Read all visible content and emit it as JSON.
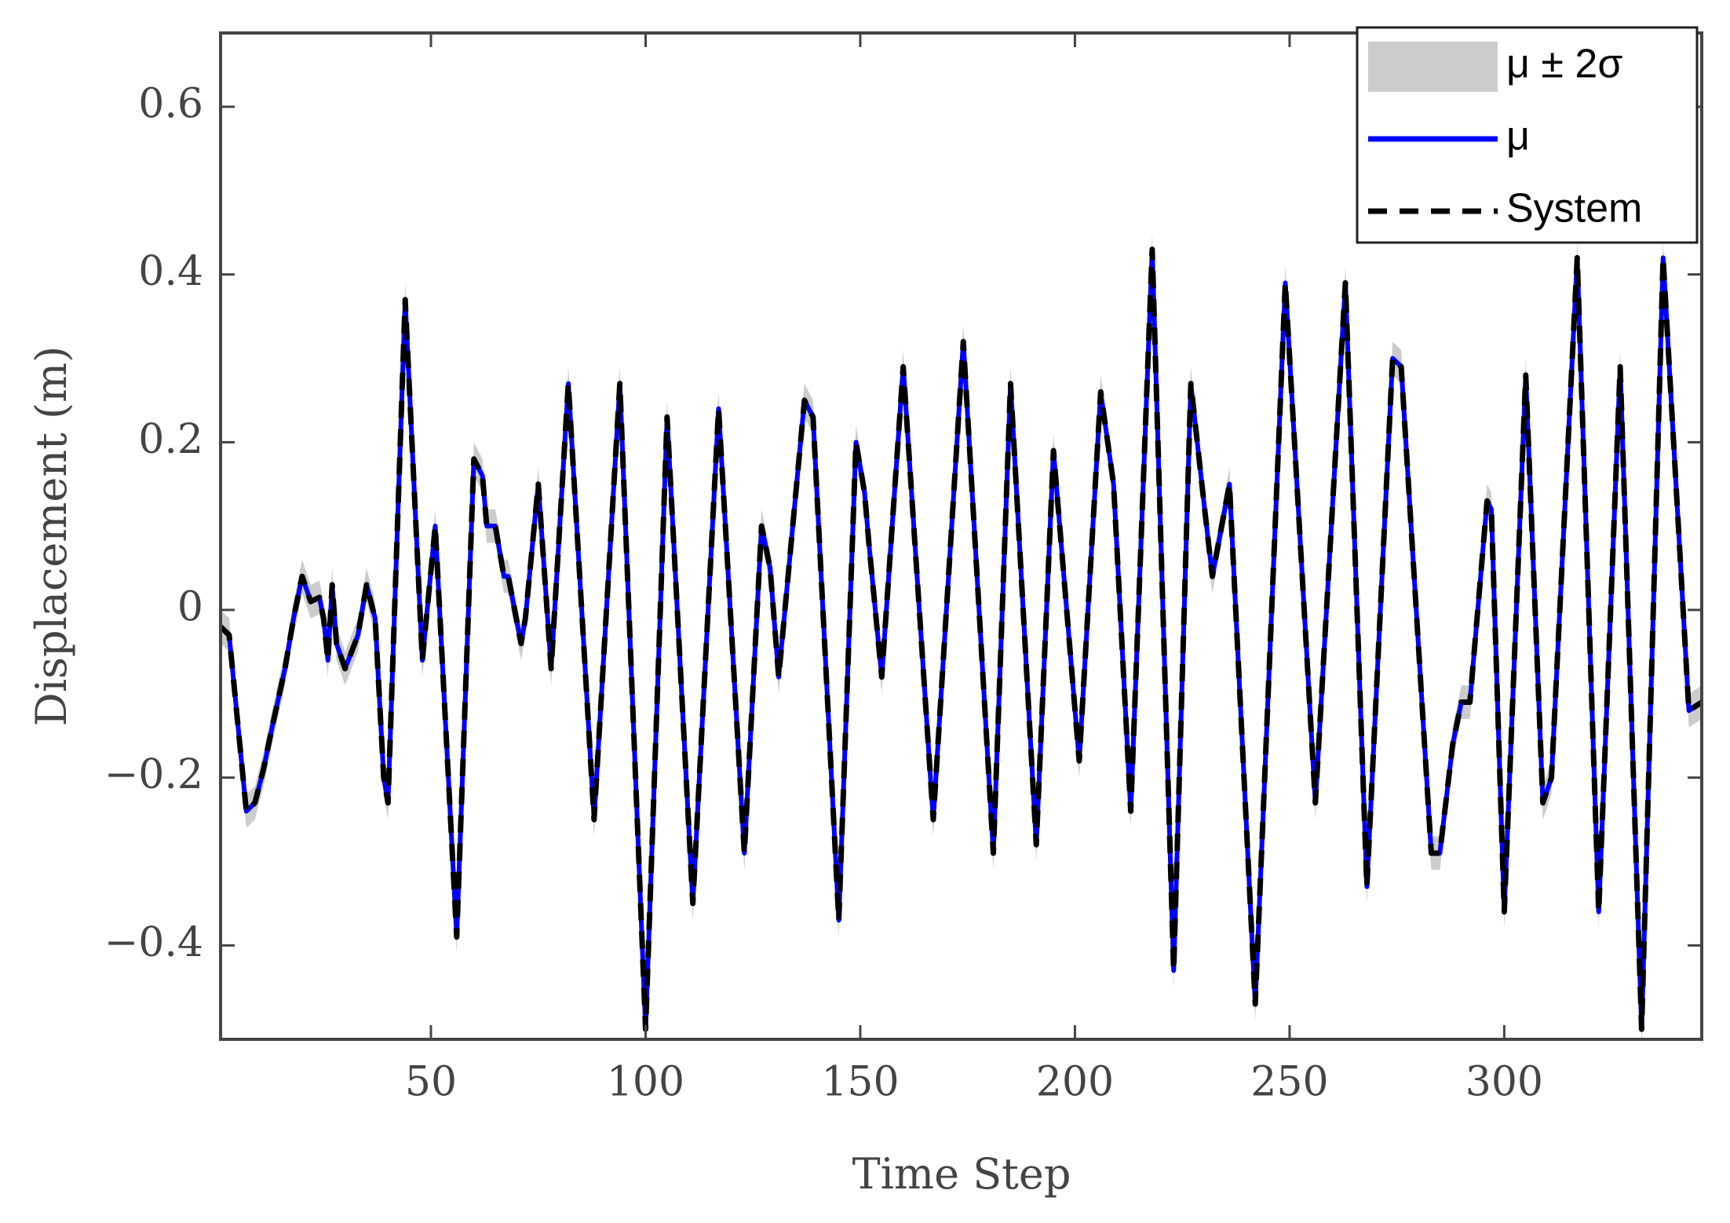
{
  "chart_data": {
    "type": "line",
    "xlabel": "Time Step",
    "ylabel": "Displacement (m)",
    "xlim": [
      1,
      346
    ],
    "ylim": [
      -0.512,
      0.688
    ],
    "xticks": [
      50,
      100,
      150,
      200,
      250,
      300
    ],
    "yticks": [
      {
        "value": -0.4,
        "label": "−0.4"
      },
      {
        "value": -0.2,
        "label": "−0.2"
      },
      0,
      0.2,
      0.4,
      0.6
    ],
    "legend": "upper right",
    "x": [
      1,
      3,
      7,
      9,
      11,
      13,
      16,
      18,
      20,
      22,
      24,
      25,
      26,
      27,
      28,
      30,
      33,
      35,
      37,
      39,
      40,
      44,
      48,
      51,
      56,
      60,
      62,
      63,
      65,
      67,
      68,
      71,
      72,
      75,
      78,
      82,
      88,
      94,
      100,
      105,
      111,
      117,
      123,
      127,
      129,
      131,
      137,
      139,
      145,
      149,
      151,
      152,
      155,
      160,
      167,
      174,
      181,
      185,
      191,
      195,
      201,
      206,
      209,
      213,
      218,
      223,
      227,
      230,
      232,
      236,
      242,
      249,
      256,
      263,
      268,
      274,
      276,
      283,
      285,
      288,
      290,
      292,
      296,
      297,
      300,
      305,
      309,
      311,
      317,
      322,
      327,
      332,
      337,
      343,
      346
    ],
    "series": [
      {
        "name": "μ ± 2σ",
        "color": "#cccccc",
        "lower": [
          -0.04,
          -0.05,
          -0.26,
          -0.25,
          -0.21,
          -0.16,
          -0.09,
          -0.03,
          0.02,
          -0.01,
          -0.005,
          -0.03,
          -0.08,
          0.01,
          -0.06,
          -0.09,
          -0.05,
          0.01,
          -0.03,
          -0.22,
          -0.25,
          0.35,
          -0.08,
          0.08,
          -0.41,
          0.16,
          0.14,
          0.08,
          0.08,
          0.02,
          0.02,
          -0.06,
          -0.03,
          0.13,
          -0.09,
          0.25,
          -0.27,
          0.25,
          -0.52,
          0.21,
          -0.37,
          0.22,
          -0.31,
          0.08,
          0.03,
          -0.1,
          0.23,
          0.21,
          -0.39,
          0.18,
          0.12,
          0.06,
          -0.1,
          0.27,
          -0.27,
          0.3,
          -0.31,
          0.25,
          -0.3,
          0.17,
          -0.2,
          0.24,
          0.13,
          -0.26,
          0.41,
          -0.45,
          0.25,
          0.11,
          0.02,
          0.13,
          -0.49,
          0.37,
          -0.25,
          0.37,
          -0.35,
          0.28,
          0.27,
          -0.31,
          -0.31,
          -0.18,
          -0.13,
          -0.13,
          0.11,
          0.1,
          -0.38,
          0.26,
          -0.25,
          -0.22,
          0.4,
          -0.38,
          0.27,
          -0.52,
          0.4,
          -0.14,
          -0.13
        ],
        "upper": [
          0.0,
          -0.01,
          -0.22,
          -0.21,
          -0.17,
          -0.12,
          -0.05,
          0.01,
          0.06,
          0.03,
          0.035,
          0.01,
          -0.04,
          0.05,
          -0.02,
          -0.05,
          -0.01,
          0.05,
          0.01,
          -0.18,
          -0.21,
          0.39,
          -0.04,
          0.12,
          -0.37,
          0.2,
          0.18,
          0.12,
          0.12,
          0.06,
          0.06,
          -0.02,
          0.01,
          0.17,
          -0.05,
          0.29,
          -0.23,
          0.29,
          -0.48,
          0.25,
          -0.33,
          0.26,
          -0.27,
          0.12,
          0.07,
          -0.06,
          0.27,
          0.25,
          -0.35,
          0.22,
          0.16,
          0.1,
          -0.06,
          0.31,
          -0.23,
          0.34,
          -0.27,
          0.29,
          -0.26,
          0.21,
          -0.16,
          0.28,
          0.17,
          -0.22,
          0.45,
          -0.41,
          0.29,
          0.15,
          0.06,
          0.17,
          -0.45,
          0.41,
          -0.21,
          0.41,
          -0.31,
          0.32,
          0.31,
          -0.27,
          -0.27,
          -0.14,
          -0.09,
          -0.09,
          0.15,
          0.14,
          -0.34,
          0.3,
          -0.21,
          -0.18,
          0.44,
          -0.34,
          0.31,
          -0.48,
          0.44,
          -0.1,
          -0.09
        ]
      },
      {
        "name": "μ",
        "color": "#0000ff",
        "dash": false,
        "values": [
          -0.02,
          -0.03,
          -0.24,
          -0.23,
          -0.19,
          -0.14,
          -0.07,
          -0.01,
          0.04,
          0.01,
          0.015,
          -0.01,
          -0.06,
          0.03,
          -0.04,
          -0.07,
          -0.03,
          0.03,
          -0.01,
          -0.2,
          -0.23,
          0.37,
          -0.06,
          0.1,
          -0.39,
          0.18,
          0.16,
          0.1,
          0.1,
          0.04,
          0.04,
          -0.04,
          -0.01,
          0.15,
          -0.07,
          0.27,
          -0.25,
          0.27,
          -0.5,
          0.23,
          -0.35,
          0.24,
          -0.29,
          0.1,
          0.05,
          -0.08,
          0.25,
          0.23,
          -0.37,
          0.2,
          0.14,
          0.08,
          -0.08,
          0.29,
          -0.25,
          0.32,
          -0.29,
          0.27,
          -0.28,
          0.19,
          -0.18,
          0.26,
          0.15,
          -0.24,
          0.43,
          -0.43,
          0.27,
          0.13,
          0.04,
          0.15,
          -0.47,
          0.39,
          -0.23,
          0.39,
          -0.33,
          0.3,
          0.29,
          -0.29,
          -0.29,
          -0.16,
          -0.11,
          -0.11,
          0.13,
          0.12,
          -0.36,
          0.28,
          -0.23,
          -0.2,
          0.42,
          -0.36,
          0.29,
          -0.5,
          0.42,
          -0.12,
          -0.11
        ]
      },
      {
        "name": "System",
        "color": "#000000",
        "dash": true,
        "values": [
          -0.02,
          -0.03,
          -0.24,
          -0.23,
          -0.19,
          -0.14,
          -0.07,
          -0.01,
          0.04,
          0.01,
          0.015,
          -0.01,
          -0.06,
          0.03,
          -0.04,
          -0.07,
          -0.03,
          0.03,
          -0.01,
          -0.2,
          -0.23,
          0.37,
          -0.06,
          0.1,
          -0.39,
          0.18,
          0.16,
          0.1,
          0.1,
          0.04,
          0.04,
          -0.04,
          -0.01,
          0.15,
          -0.07,
          0.27,
          -0.25,
          0.27,
          -0.5,
          0.23,
          -0.35,
          0.24,
          -0.29,
          0.1,
          0.05,
          -0.08,
          0.25,
          0.23,
          -0.37,
          0.2,
          0.14,
          0.08,
          -0.08,
          0.29,
          -0.25,
          0.32,
          -0.29,
          0.27,
          -0.28,
          0.19,
          -0.18,
          0.26,
          0.15,
          -0.24,
          0.43,
          -0.43,
          0.27,
          0.13,
          0.04,
          0.15,
          -0.47,
          0.39,
          -0.23,
          0.39,
          -0.33,
          0.3,
          0.29,
          -0.29,
          -0.29,
          -0.16,
          -0.11,
          -0.11,
          0.13,
          0.12,
          -0.36,
          0.28,
          -0.23,
          -0.2,
          0.42,
          -0.36,
          0.29,
          -0.5,
          0.42,
          -0.12,
          -0.11
        ]
      }
    ]
  }
}
